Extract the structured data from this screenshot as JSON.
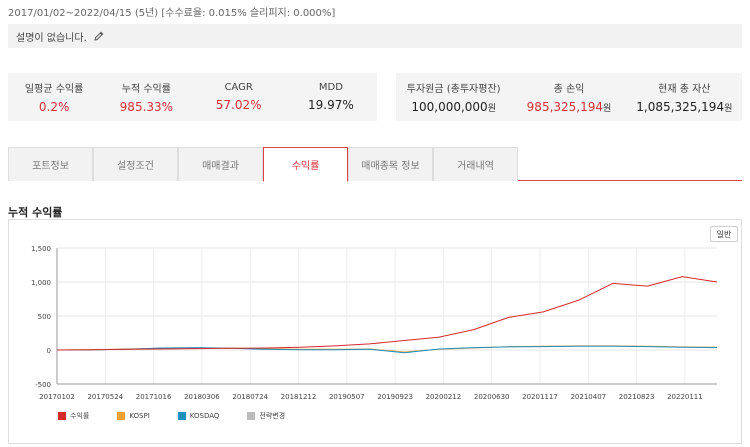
{
  "header": {
    "period": "2017/01/02~2022/04/15 (5년) [수수료율: 0.015% 슬리피지: 0.000%]",
    "description": "설명이 없습니다."
  },
  "stats_left": [
    {
      "label": "일평균 수익률",
      "value": "0.2%",
      "red": true
    },
    {
      "label": "누적 수익률",
      "value": "985.33%",
      "red": true
    },
    {
      "label": "CAGR",
      "value": "57.02%",
      "red": true
    },
    {
      "label": "MDD",
      "value": "19.97%",
      "red": false
    }
  ],
  "stats_right": [
    {
      "label": "투자원금 (총투자평잔)",
      "value": "100,000,000",
      "unit": "원",
      "red": false
    },
    {
      "label": "총 손익",
      "value": "985,325,194",
      "unit": "원",
      "red": true
    },
    {
      "label": "현재 총 자산",
      "value": "1,085,325,194",
      "unit": "원",
      "red": false
    }
  ],
  "tabs": [
    "포트정보",
    "설정조건",
    "매매결과",
    "수익률",
    "매매종목 정보",
    "거래내역"
  ],
  "active_tab": 3,
  "section_title": "누적 수익률",
  "chart_button": "일반",
  "chart_data": {
    "type": "line",
    "title": "누적 수익률",
    "ylim": [
      -500,
      1500
    ],
    "yticks": [
      "1,500",
      "1,000",
      "500",
      "0",
      "-500"
    ],
    "xticks": [
      "20170102",
      "20170524",
      "20171016",
      "20180306",
      "20180724",
      "20181212",
      "20190507",
      "20190923",
      "20200212",
      "20200630",
      "20201117",
      "20210407",
      "20210823",
      "20220111"
    ],
    "grid": true,
    "legend_position": "bottom-left",
    "series": [
      {
        "name": "수익률",
        "color": "#d52b2b",
        "values": [
          0,
          5,
          10,
          15,
          20,
          25,
          30,
          40,
          60,
          90,
          140,
          190,
          300,
          480,
          560,
          730,
          980,
          940,
          1080,
          1000
        ]
      },
      {
        "name": "KOSPI",
        "color": "#f0a030",
        "values": [
          0,
          5,
          15,
          25,
          30,
          25,
          20,
          10,
          10,
          15,
          -30,
          10,
          30,
          50,
          55,
          60,
          60,
          55,
          45,
          40
        ]
      },
      {
        "name": "KOSDAQ",
        "color": "#1f8fc0",
        "values": [
          0,
          2,
          10,
          30,
          35,
          25,
          10,
          5,
          5,
          10,
          -40,
          15,
          35,
          45,
          50,
          55,
          55,
          50,
          40,
          35
        ]
      },
      {
        "name": "전략변경",
        "color": "#bbbbbb",
        "values": []
      }
    ]
  }
}
